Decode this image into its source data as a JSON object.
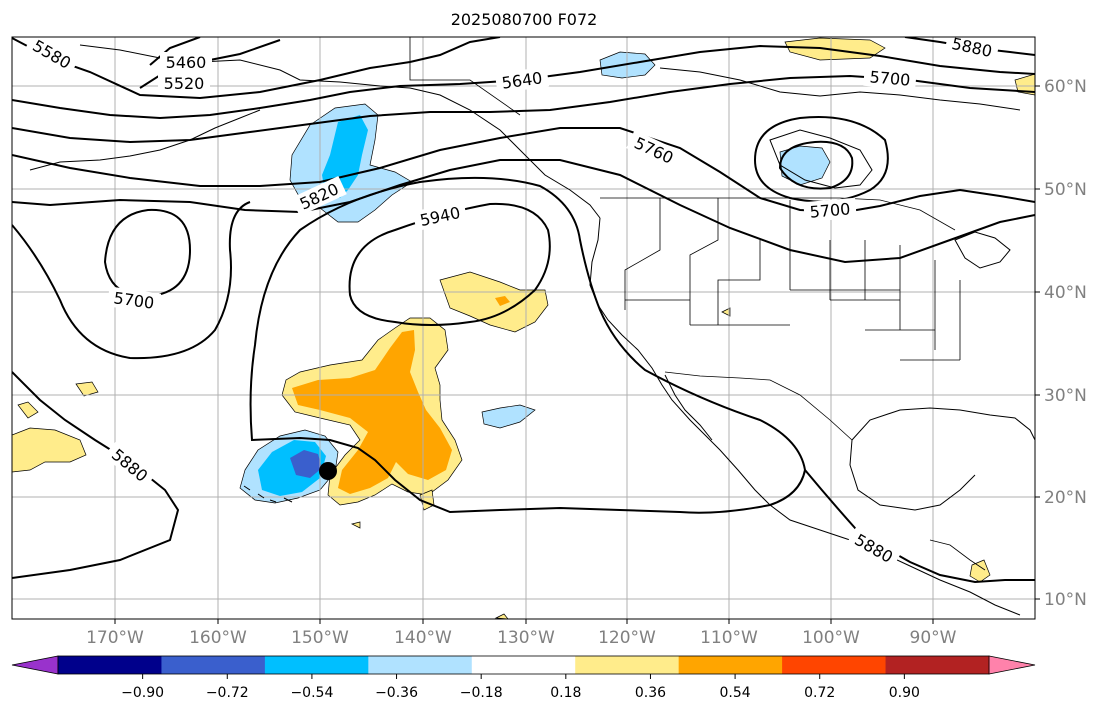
{
  "map": {
    "title": "2025080700 F072",
    "contour_labels": [
      "5580",
      "5460",
      "5520",
      "5640",
      "5700",
      "5760",
      "5820",
      "5940",
      "5700",
      "5700",
      "5880",
      "5880",
      "5880"
    ],
    "lon_labels": [
      "170°W",
      "160°W",
      "150°W",
      "140°W",
      "130°W",
      "120°W",
      "110°W",
      "100°W",
      "90°W"
    ],
    "lat_labels": [
      "60°N",
      "50°N",
      "40°N",
      "30°N",
      "20°N",
      "10°N"
    ],
    "storm_marker": {
      "lon": -149,
      "lat": 22.5
    }
  },
  "colorbar": {
    "ticks": [
      "−0.90",
      "−0.72",
      "−0.54",
      "−0.36",
      "−0.18",
      "0.18",
      "0.36",
      "0.54",
      "0.72",
      "0.90"
    ],
    "colors": [
      "#9932cc",
      "#00008b",
      "#3a5fcd",
      "#00bfff",
      "#b0e2ff",
      "#ffffff",
      "#ffec8b",
      "#ffa500",
      "#ff4500",
      "#b22222",
      "#ff82ab"
    ]
  },
  "style": {
    "contour_color": "#000000",
    "grid_color": "#b0b0b0",
    "axis_label_color": "#808080"
  }
}
